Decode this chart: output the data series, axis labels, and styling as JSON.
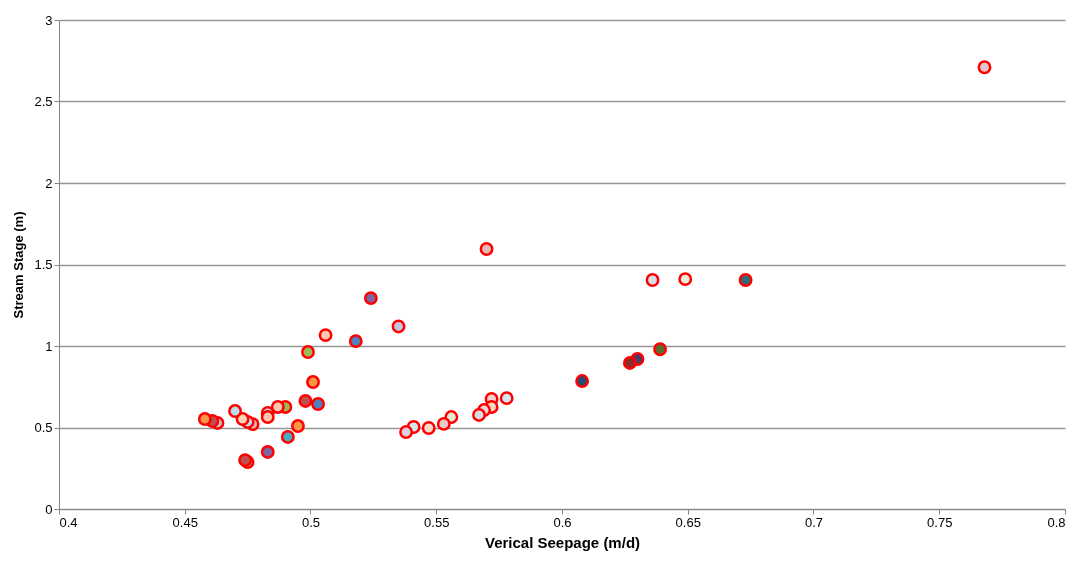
{
  "chart_data": {
    "type": "scatter",
    "xlabel": "Verical Seepage (m/d)",
    "ylabel": "Stream Stage (m)",
    "x": [
      0.768,
      0.57,
      0.636,
      0.649,
      0.673,
      0.639,
      0.63,
      0.627,
      0.608,
      0.535,
      0.578,
      0.572,
      0.572,
      0.569,
      0.567,
      0.556,
      0.553,
      0.547,
      0.541,
      0.538,
      0.524,
      0.506,
      0.518,
      0.499,
      0.501,
      0.498,
      0.503,
      0.49,
      0.487,
      0.483,
      0.483,
      0.477,
      0.475,
      0.473,
      0.47,
      0.463,
      0.461,
      0.458,
      0.495,
      0.491,
      0.483,
      0.475,
      0.474
    ],
    "values": [
      2.71,
      1.595,
      1.405,
      1.41,
      1.405,
      0.98,
      0.92,
      0.896,
      0.785,
      1.12,
      0.68,
      0.675,
      0.626,
      0.607,
      0.577,
      0.564,
      0.522,
      0.497,
      0.503,
      0.472,
      1.294,
      1.067,
      1.03,
      0.963,
      0.779,
      0.663,
      0.644,
      0.626,
      0.626,
      0.589,
      0.564,
      0.521,
      0.534,
      0.552,
      0.601,
      0.528,
      0.54,
      0.552,
      0.509,
      0.442,
      0.35,
      0.288,
      0.3
    ],
    "colors": [
      "#e0c8cc",
      "#e6b9b8",
      "#dcdce8",
      "#e6eed8",
      "#2e6b7c",
      "#5a6e2e",
      "#4a3d6a",
      "#8b2a2a",
      "#2a4a72",
      "#c0c8e0",
      "#d0e8f0",
      "#f4d0d0",
      "#fad9c0",
      "#ead8e0",
      "#d8dce8",
      "#e0ead0",
      "#e8c8c8",
      "#fad9cc",
      "#d0e8f0",
      "#d8d0e0",
      "#8064a2",
      "#fac8b0",
      "#4f81bd",
      "#9bbb59",
      "#f79646",
      "#c0504d",
      "#4f81bd",
      "#9bbb59",
      "#fac8b0",
      "#b7dee8",
      "#fac8b0",
      "#e6b9b8",
      "#c6d9f1",
      "#fbd5b5",
      "#b7dee8",
      "#ccc0da",
      "#c0504d",
      "#f79646",
      "#f79646",
      "#4bacc6",
      "#8064a2",
      "#9bbb59",
      "#c0504d"
    ],
    "xlim": [
      0.4,
      0.8
    ],
    "xticks": [
      0.4,
      0.45,
      0.5,
      0.55,
      0.6,
      0.65,
      0.7,
      0.75,
      0.8
    ],
    "ylim": [
      0,
      3
    ],
    "yticks": [
      0,
      0.5,
      1,
      1.5,
      2,
      2.5,
      3
    ],
    "grid": "y",
    "marker": "circle"
  }
}
